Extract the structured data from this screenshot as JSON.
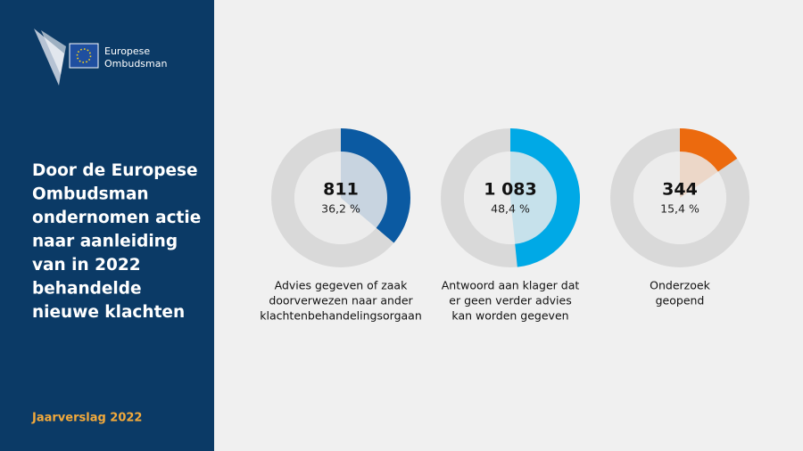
{
  "sidebar": {
    "logo_lines": [
      "Europese",
      "Ombudsman"
    ],
    "title_lines": [
      "Door de Europese",
      "Ombudsman",
      "ondernomen actie",
      "naar aanleiding",
      "van in 2022",
      "behandelde",
      "nieuwe klachten"
    ],
    "footer": "Jaarverslag 2022"
  },
  "chart_data": [
    {
      "type": "donut",
      "count": 811,
      "values": [
        36.2
      ],
      "value_labels": [
        "36,2 %"
      ],
      "color": "#0b5aa2",
      "label_lines": [
        "Advies gegeven of zaak",
        "doorverwezen naar ander",
        "klachtenbehandelingsorgaan"
      ]
    },
    {
      "type": "donut",
      "count": {
        "value": 1083,
        "label": "1 083"
      },
      "values": [
        48.4
      ],
      "value_labels": [
        "48,4 %"
      ],
      "color": "#00a9e6",
      "label_lines": [
        "Antwoord aan klager dat",
        "er geen verder advies",
        "kan worden gegeven"
      ]
    },
    {
      "type": "donut",
      "count": 344,
      "values": [
        15.4
      ],
      "value_labels": [
        "15,4 %"
      ],
      "color": "#ec6a0e",
      "label_lines": [
        "Onderzoek",
        "geopend"
      ]
    }
  ]
}
